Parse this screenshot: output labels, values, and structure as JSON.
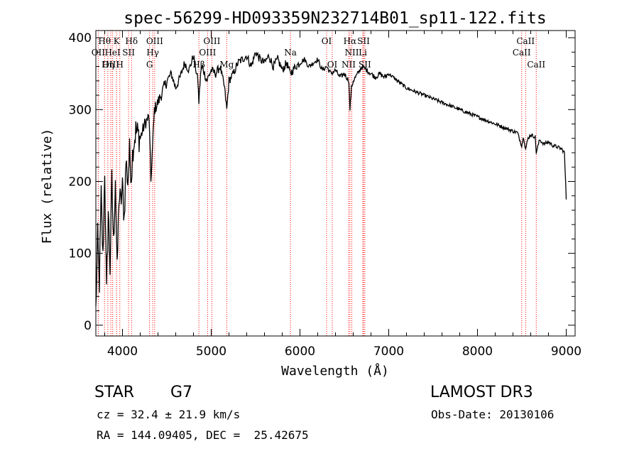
{
  "chart_data": {
    "type": "line",
    "title": "spec-56299-HD093359N232714B01_sp11-122.fits",
    "xlabel": "Wavelength (Å)",
    "ylabel": "Flux (relative)",
    "xlim": [
      3700,
      9100
    ],
    "ylim": [
      -15,
      410
    ],
    "x_ticks": [
      4000,
      5000,
      6000,
      7000,
      8000,
      9000
    ],
    "y_ticks": [
      0,
      100,
      200,
      300,
      400
    ],
    "series": [
      {
        "name": "spectrum",
        "x": [
          3700,
          3720,
          3740,
          3760,
          3780,
          3800,
          3820,
          3840,
          3860,
          3880,
          3900,
          3920,
          3940,
          3960,
          3980,
          4000,
          4020,
          4040,
          4060,
          4080,
          4100,
          4120,
          4150,
          4200,
          4250,
          4300,
          4320,
          4340,
          4360,
          4400,
          4450,
          4500,
          4550,
          4600,
          4650,
          4700,
          4750,
          4800,
          4850,
          4861,
          4880,
          4900,
          4950,
          5000,
          5050,
          5100,
          5150,
          5175,
          5200,
          5250,
          5300,
          5350,
          5400,
          5450,
          5500,
          5550,
          5600,
          5650,
          5700,
          5750,
          5800,
          5850,
          5890,
          5950,
          6000,
          6050,
          6100,
          6150,
          6200,
          6250,
          6300,
          6350,
          6400,
          6450,
          6500,
          6550,
          6563,
          6580,
          6600,
          6650,
          6700,
          6750,
          6800,
          6850,
          6900,
          6950,
          7000,
          7100,
          7200,
          7300,
          7400,
          7500,
          7600,
          7700,
          7800,
          7900,
          8000,
          8100,
          8200,
          8300,
          8400,
          8450,
          8498,
          8520,
          8542,
          8570,
          8600,
          8650,
          8662,
          8700,
          8750,
          8800,
          8850,
          8900,
          8950,
          8980,
          9000
        ],
        "y": [
          20,
          120,
          60,
          180,
          90,
          220,
          40,
          160,
          80,
          200,
          110,
          210,
          70,
          180,
          170,
          190,
          150,
          230,
          200,
          240,
          210,
          250,
          270,
          260,
          280,
          290,
          200,
          250,
          300,
          310,
          325,
          340,
          350,
          330,
          345,
          365,
          355,
          375,
          340,
          310,
          350,
          360,
          340,
          355,
          350,
          360,
          330,
          300,
          340,
          350,
          365,
          370,
          375,
          360,
          380,
          370,
          365,
          375,
          360,
          370,
          355,
          365,
          350,
          360,
          365,
          370,
          360,
          365,
          370,
          355,
          360,
          350,
          355,
          345,
          350,
          340,
          300,
          330,
          340,
          350,
          360,
          355,
          350,
          345,
          350,
          345,
          350,
          340,
          330,
          325,
          320,
          315,
          310,
          305,
          300,
          295,
          290,
          285,
          280,
          275,
          270,
          268,
          250,
          262,
          245,
          260,
          265,
          262,
          240,
          258,
          252,
          255,
          250,
          248,
          245,
          240,
          175
        ]
      }
    ],
    "lines": [
      {
        "name": "Hθ",
        "wave": 3798,
        "row": 1
      },
      {
        "name": "OII",
        "wave": 3727,
        "row": 2
      },
      {
        "name": "OIII",
        "wave": 3869,
        "row": 3
      },
      {
        "name": "K",
        "wave": 3934,
        "row": 1
      },
      {
        "name": "HeI",
        "wave": 3889,
        "row": 2
      },
      {
        "name": "Hη",
        "wave": 3835,
        "row": 3
      },
      {
        "name": "H",
        "wave": 3970,
        "row": 3
      },
      {
        "name": "SII",
        "wave": 4069,
        "row": 2
      },
      {
        "name": "Hδ",
        "wave": 4102,
        "row": 1
      },
      {
        "name": "OIII",
        "wave": 4363,
        "row": 1
      },
      {
        "name": "Hγ",
        "wave": 4341,
        "row": 2
      },
      {
        "name": "G",
        "wave": 4305,
        "row": 3
      },
      {
        "name": "OIII",
        "wave": 5007,
        "row": 1
      },
      {
        "name": "OIII",
        "wave": 4959,
        "row": 2
      },
      {
        "name": "Hβ",
        "wave": 4861,
        "row": 3
      },
      {
        "name": "Mg",
        "wave": 5175,
        "row": 3
      },
      {
        "name": "Na",
        "wave": 5893,
        "row": 2
      },
      {
        "name": "OI",
        "wave": 6300,
        "row": 1
      },
      {
        "name": "OI",
        "wave": 6364,
        "row": 3
      },
      {
        "name": "Hα",
        "wave": 6563,
        "row": 1
      },
      {
        "name": "SII",
        "wave": 6716,
        "row": 1
      },
      {
        "name": "NII",
        "wave": 6584,
        "row": 2
      },
      {
        "name": "Li",
        "wave": 6708,
        "row": 2
      },
      {
        "name": "NII",
        "wave": 6548,
        "row": 3
      },
      {
        "name": "SII",
        "wave": 6731,
        "row": 3
      },
      {
        "name": "CaII",
        "wave": 8542,
        "row": 1
      },
      {
        "name": "CaII",
        "wave": 8498,
        "row": 2
      },
      {
        "name": "CaII",
        "wave": 8662,
        "row": 3
      }
    ]
  },
  "info": {
    "object_type": "STAR",
    "subclass": "G7",
    "survey": "LAMOST DR3",
    "redshift_line": "cz = 32.4 ± 21.9 km/s",
    "obs_date_line": "Obs-Date: 20130106",
    "coords_line": "RA = 144.09405, DEC =  25.42675"
  }
}
